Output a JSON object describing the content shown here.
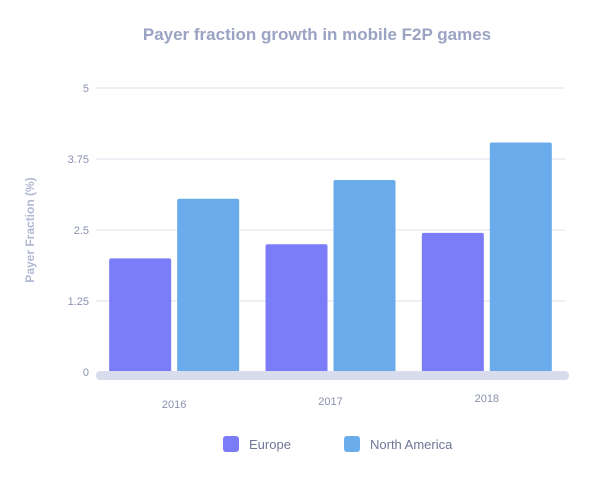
{
  "chart_data": {
    "type": "bar",
    "title": "Payer fraction growth in mobile F2P games",
    "xlabel": "",
    "ylabel": "Payer Fraction (%)",
    "ylim": [
      0,
      5
    ],
    "yticks": [
      "0",
      "1.25",
      "2.5",
      "3.75",
      "5"
    ],
    "grid": true,
    "legend_position": "bottom",
    "categories": [
      "2016",
      "2017",
      "2018"
    ],
    "series": [
      {
        "name": "Europe",
        "color": "#7b7cf7",
        "values": [
          2.0,
          2.25,
          2.45
        ]
      },
      {
        "name": "North America",
        "color": "#6aaceb",
        "values": [
          3.05,
          3.38,
          4.04
        ]
      }
    ]
  }
}
